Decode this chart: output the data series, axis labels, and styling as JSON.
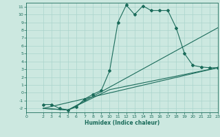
{
  "xlabel": "Humidex (Indice chaleur)",
  "bg_color": "#cce8e0",
  "line_color": "#1a6b5a",
  "grid_color": "#aad4cc",
  "xlim": [
    0,
    23
  ],
  "ylim": [
    -2.5,
    11.5
  ],
  "xticks": [
    0,
    2,
    3,
    4,
    5,
    6,
    7,
    8,
    9,
    10,
    11,
    12,
    13,
    14,
    15,
    16,
    17,
    18,
    19,
    20,
    21,
    22,
    23
  ],
  "yticks": [
    -2,
    -1,
    0,
    1,
    2,
    3,
    4,
    5,
    6,
    7,
    8,
    9,
    10,
    11
  ],
  "line1_x": [
    2,
    3,
    4,
    5,
    6,
    7,
    8,
    9,
    10,
    11,
    12,
    13,
    14,
    15,
    16,
    17,
    18,
    19,
    20,
    21,
    22,
    23
  ],
  "line1_y": [
    -1.5,
    -1.5,
    -2.0,
    -2.2,
    -1.8,
    -0.8,
    -0.2,
    0.3,
    2.8,
    9.0,
    11.2,
    10.0,
    11.1,
    10.5,
    10.5,
    10.5,
    8.3,
    5.0,
    3.5,
    3.3,
    3.2,
    3.2
  ],
  "line2_x": [
    2,
    23
  ],
  "line2_y": [
    -2.0,
    3.2
  ],
  "line3_x": [
    2,
    5,
    10,
    23
  ],
  "line3_y": [
    -2.0,
    -2.2,
    0.4,
    3.2
  ],
  "line4_x": [
    2,
    5,
    23
  ],
  "line4_y": [
    -2.0,
    -2.2,
    8.3
  ],
  "tick_fontsize": 4.5,
  "xlabel_fontsize": 5.5,
  "marker": "D",
  "markersize": 2.0,
  "linewidth": 0.8
}
